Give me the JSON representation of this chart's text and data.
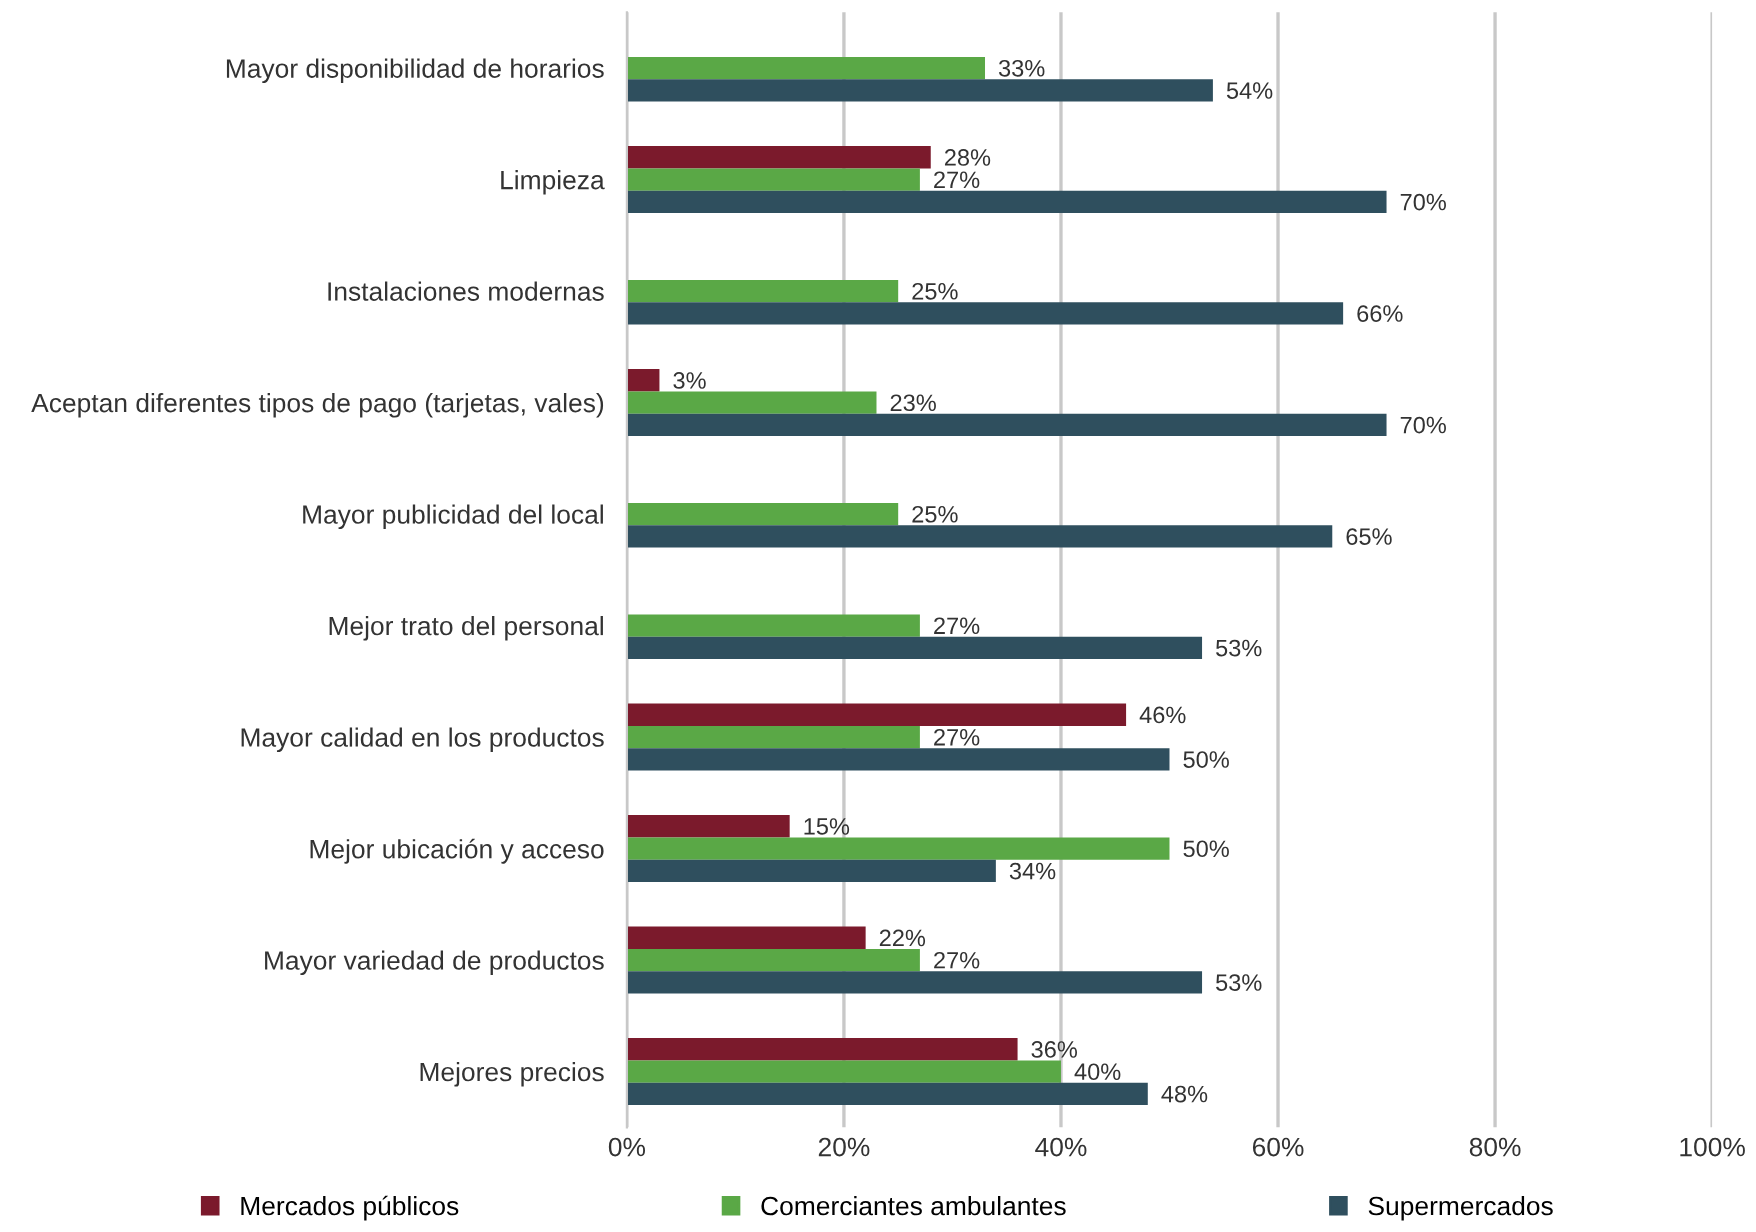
{
  "chart_data": {
    "type": "bar",
    "orientation": "horizontal",
    "categories": [
      "Mayor disponibilidad de horarios",
      "Limpieza",
      "Instalaciones modernas",
      "Aceptan diferentes tipos de pago (tarjetas, vales)",
      "Mayor publicidad del local",
      "Mejor trato del personal",
      "Mayor calidad en los productos",
      "Mejor ubicación y acceso",
      "Mayor variedad de productos",
      "Mejores precios"
    ],
    "series": [
      {
        "name": "Mercados públicos",
        "color": "#7b1a2c",
        "values": [
          null,
          28,
          null,
          3,
          null,
          null,
          46,
          15,
          22,
          36
        ],
        "value_labels": [
          null,
          "28%",
          null,
          "3%",
          null,
          null,
          "46%",
          "15%",
          "22%",
          "36%"
        ]
      },
      {
        "name": "Comerciantes ambulantes",
        "color": "#5aa846",
        "values": [
          33,
          27,
          25,
          23,
          25,
          27,
          27,
          50,
          27,
          40
        ],
        "value_labels": [
          "33%",
          "27%",
          "25%",
          "23%",
          "25%",
          "27%",
          "27%",
          "50%",
          "27%",
          "40%"
        ]
      },
      {
        "name": "Supermercados",
        "color": "#2f4f5e",
        "values": [
          54,
          70,
          66,
          70,
          65,
          53,
          50,
          34,
          53,
          48
        ],
        "value_labels": [
          "54%",
          "70%",
          "66%",
          "70%",
          "65%",
          "53%",
          "50%",
          "34%",
          "53%",
          "48%"
        ]
      }
    ],
    "xlim": [
      0,
      100
    ],
    "xticks": [
      {
        "value": 0,
        "label": "0%"
      },
      {
        "value": 20,
        "label": "20%"
      },
      {
        "value": 40,
        "label": "40%"
      },
      {
        "value": 60,
        "label": "60%"
      },
      {
        "value": 80,
        "label": "80%"
      },
      {
        "value": 100,
        "label": "100%"
      }
    ],
    "grid": "x",
    "legend": "bottom"
  }
}
